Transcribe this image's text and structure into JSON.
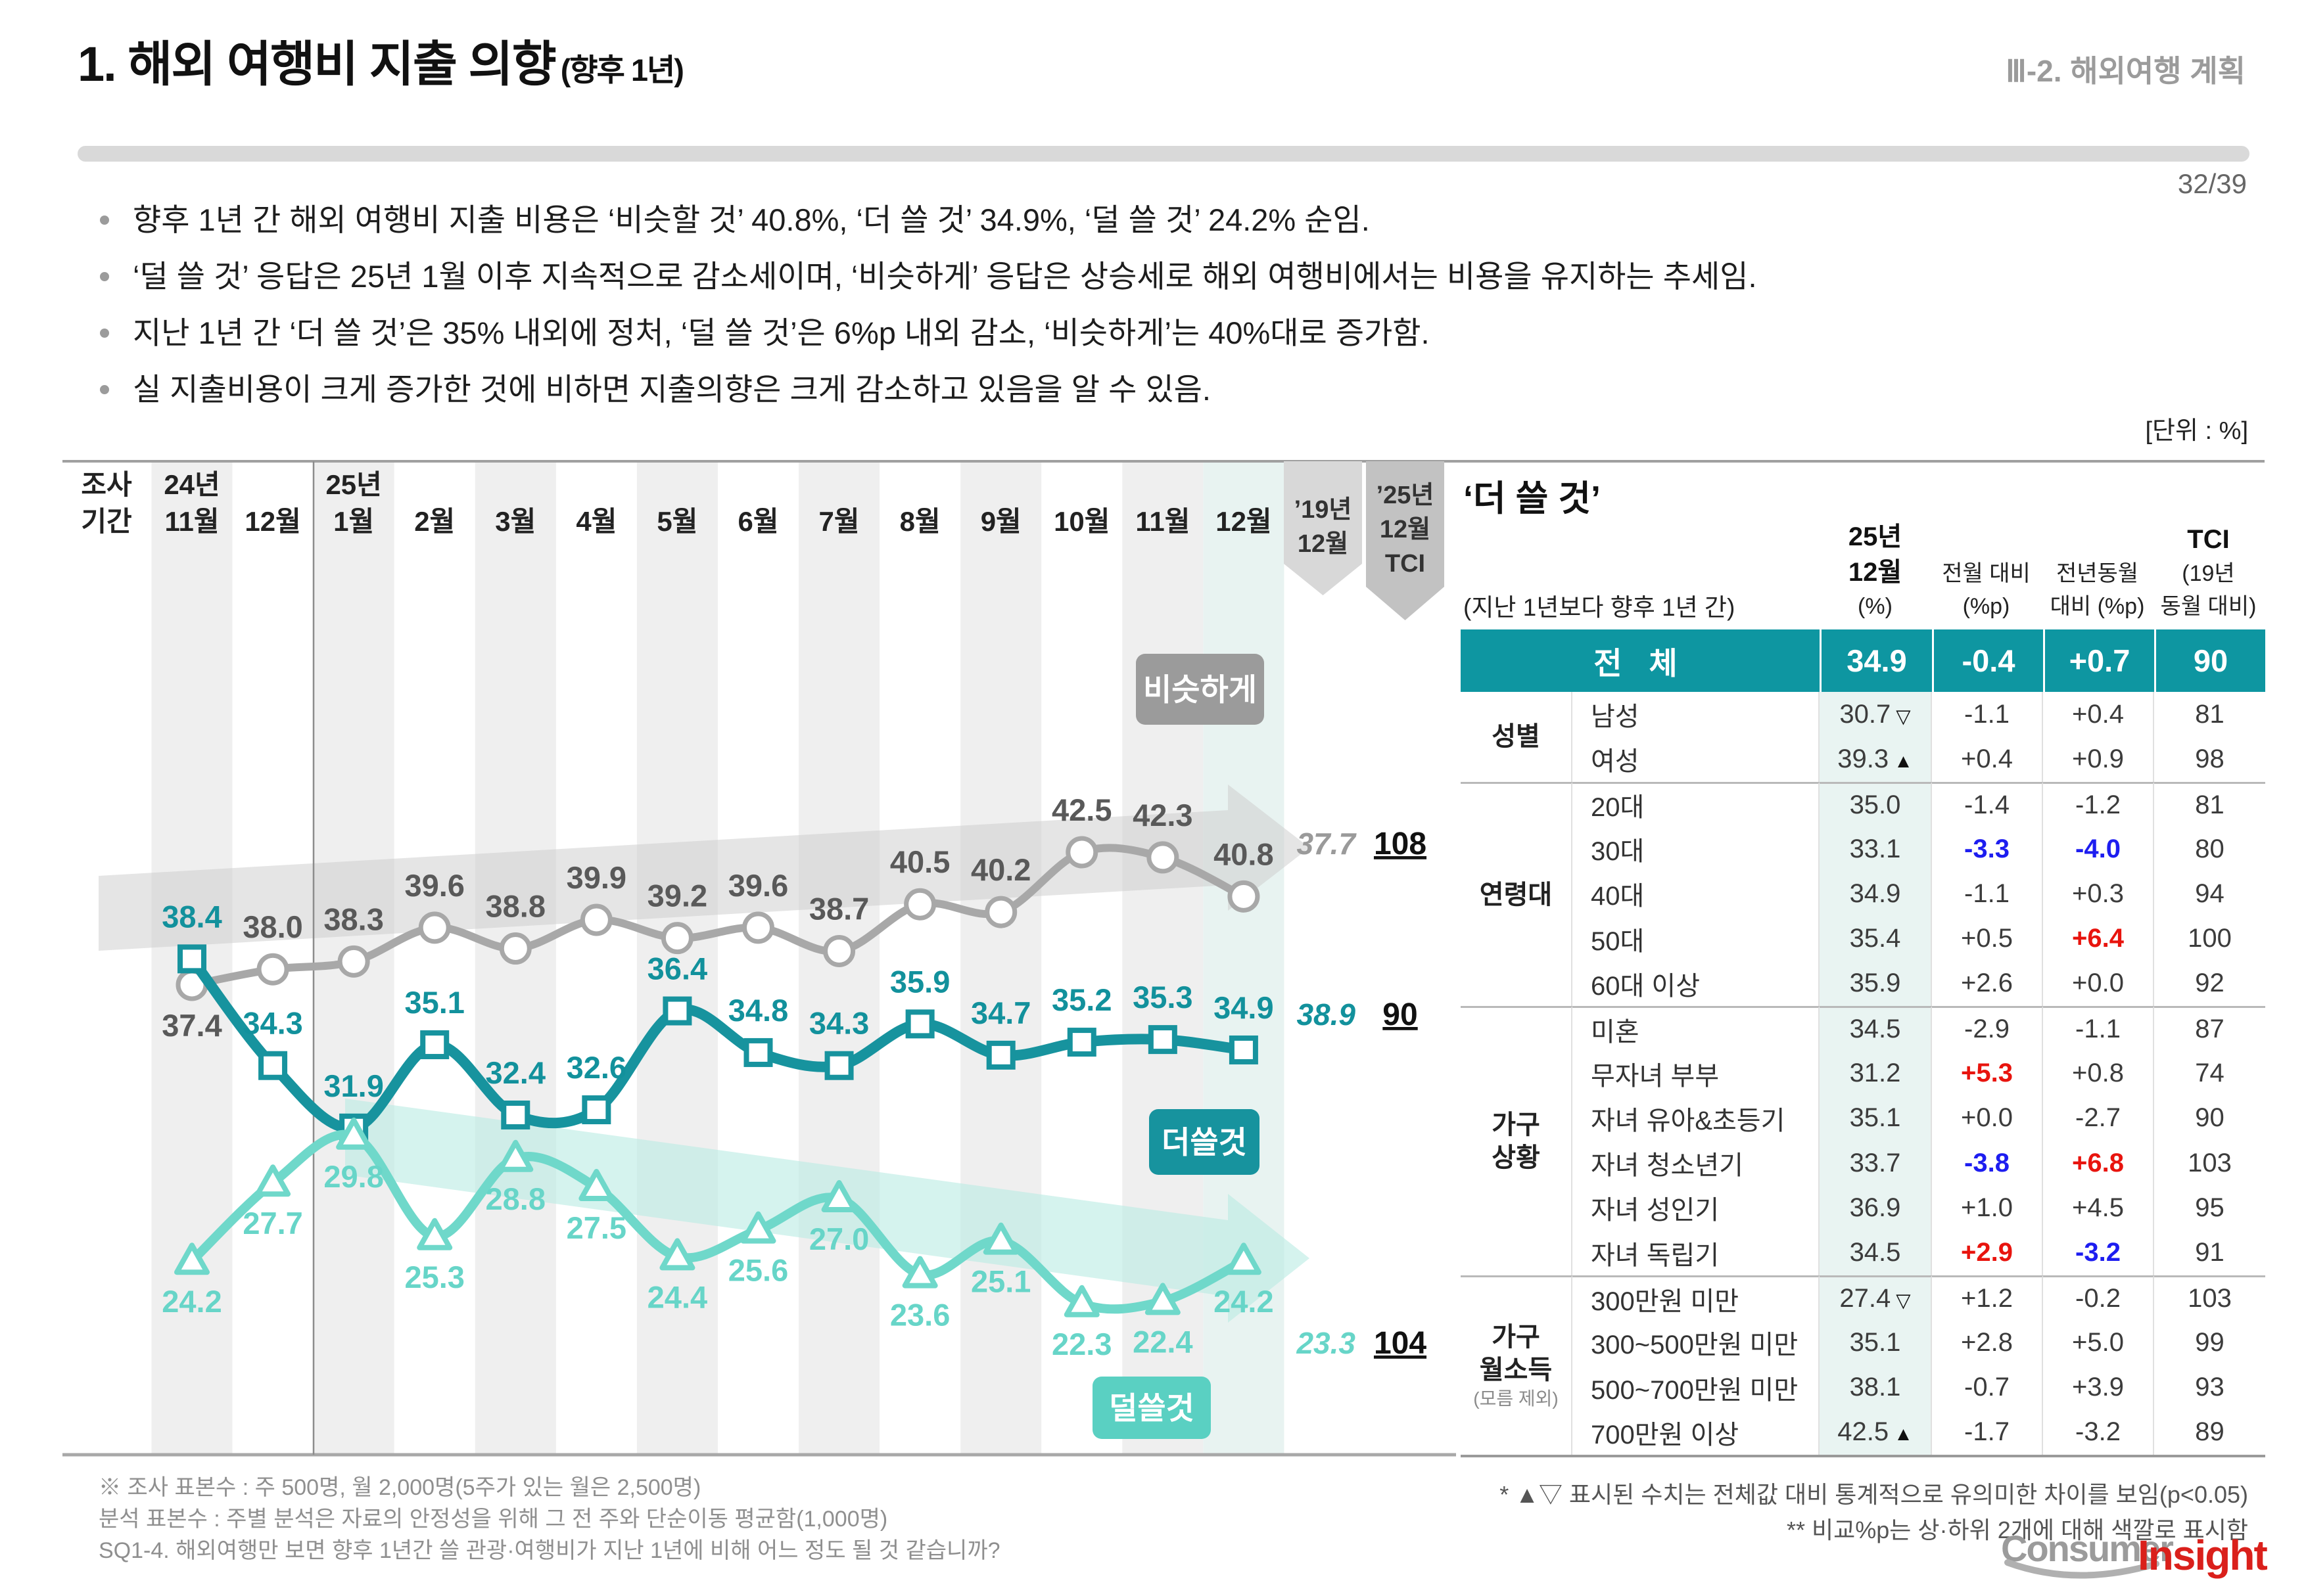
{
  "header": {
    "title": "1. 해외 여행비 지출 의향",
    "title_suffix": "(향후 1년)",
    "section": "Ⅲ-2. 해외여행 계획",
    "page": "32/39"
  },
  "bullets": [
    "향후 1년 간 해외 여행비 지출 비용은 ‘비슷할 것’ 40.8%, ‘더 쓸 것’ 34.9%, ‘덜 쓸 것’ 24.2% 순임.",
    "‘덜 쓸 것’ 응답은 25년 1월 이후 지속적으로 감소세이며, ‘비슷하게’ 응답은 상승세로 해외 여행비에서는 비용을 유지하는 추세임.",
    "지난 1년 간 ‘더 쓸 것’은 35% 내외에 정처, ‘덜 쓸 것’은 6%p 내외 감소, ‘비슷하게’는 40%대로 증가함.",
    "실 지출비용이 크게 증가한 것에 비하면 지출의향은 크게 감소하고 있음을 알 수 있음."
  ],
  "unit_label": "[단위 : %]",
  "chart_data": {
    "type": "line",
    "x_header": [
      "조사",
      "기간"
    ],
    "categories": [
      {
        "year": "24년",
        "month": "11월"
      },
      {
        "month": "12월"
      },
      {
        "year": "25년",
        "month": "1월"
      },
      {
        "month": "2월"
      },
      {
        "month": "3월"
      },
      {
        "month": "4월"
      },
      {
        "month": "5월"
      },
      {
        "month": "6월"
      },
      {
        "month": "7월"
      },
      {
        "month": "8월"
      },
      {
        "month": "9월"
      },
      {
        "month": "10월"
      },
      {
        "month": "11월"
      },
      {
        "month": "12월"
      }
    ],
    "ribbons": [
      {
        "lines": [
          "’19년",
          "12월"
        ],
        "color": "#d8d8d8"
      },
      {
        "lines": [
          "’25년",
          "12월",
          "TCI"
        ],
        "color": "#c2c2c2"
      }
    ],
    "series": [
      {
        "name": "비슷하게",
        "marker": "circle",
        "color": "#a8a8a8",
        "label_color": "#595959",
        "badge_color": "#9b9b9b",
        "values": [
          37.4,
          38.0,
          38.3,
          39.6,
          38.8,
          39.9,
          39.2,
          39.6,
          38.7,
          40.5,
          40.2,
          42.5,
          42.3,
          40.8
        ],
        "ref_19dec": "37.7",
        "tci": "108"
      },
      {
        "name": "더쓸것",
        "marker": "square",
        "color": "#17939e",
        "label_color": "#12919c",
        "badge_color": "#17939e",
        "values": [
          38.4,
          34.3,
          31.9,
          35.1,
          32.4,
          32.6,
          36.4,
          34.8,
          34.3,
          35.9,
          34.7,
          35.2,
          35.3,
          34.9
        ],
        "ref_19dec": "38.9",
        "tci": "90"
      },
      {
        "name": "덜쓸것",
        "marker": "triangle",
        "color": "#6fd8ca",
        "label_color": "#67d5c8",
        "badge_color": "#5ad0c2",
        "values": [
          24.2,
          27.7,
          29.8,
          25.3,
          28.8,
          27.5,
          24.4,
          25.6,
          27.0,
          23.6,
          25.1,
          22.3,
          22.4,
          24.2
        ],
        "ref_19dec": "23.3",
        "tci": "104"
      }
    ]
  },
  "table": {
    "title": "‘더 쓸 것’",
    "subtitle": "(지난 1년보다 향후 1년 간)",
    "col_headers": [
      [
        "25년",
        "12월",
        "(%)"
      ],
      [
        "전월 대비",
        "(%p)"
      ],
      [
        "전년동월",
        "대비 (%p)"
      ],
      [
        "TCI",
        "(19년",
        "동월 대비)"
      ]
    ],
    "total_row": {
      "label": "전  체",
      "v": "34.9",
      "mom": "-0.4",
      "yoy": "+0.7",
      "tci": "90"
    },
    "groups": [
      {
        "label": [
          "성별"
        ],
        "note": "",
        "rows": [
          {
            "cat": "남성",
            "v": "30.7",
            "mark": "▽",
            "mom": "-1.1",
            "yoy": "+0.4",
            "tci": "81",
            "mom_c": "",
            "yoy_c": ""
          },
          {
            "cat": "여성",
            "v": "39.3",
            "mark": "▲",
            "mom": "+0.4",
            "yoy": "+0.9",
            "tci": "98",
            "mom_c": "",
            "yoy_c": ""
          }
        ]
      },
      {
        "label": [
          "연령대"
        ],
        "note": "",
        "rows": [
          {
            "cat": "20대",
            "v": "35.0",
            "mark": "",
            "mom": "-1.4",
            "yoy": "-1.2",
            "tci": "81",
            "mom_c": "",
            "yoy_c": ""
          },
          {
            "cat": "30대",
            "v": "33.1",
            "mark": "",
            "mom": "-3.3",
            "yoy": "-4.0",
            "tci": "80",
            "mom_c": "blue",
            "yoy_c": "blue"
          },
          {
            "cat": "40대",
            "v": "34.9",
            "mark": "",
            "mom": "-1.1",
            "yoy": "+0.3",
            "tci": "94",
            "mom_c": "",
            "yoy_c": ""
          },
          {
            "cat": "50대",
            "v": "35.4",
            "mark": "",
            "mom": "+0.5",
            "yoy": "+6.4",
            "tci": "100",
            "mom_c": "",
            "yoy_c": "red"
          },
          {
            "cat": "60대 이상",
            "v": "35.9",
            "mark": "",
            "mom": "+2.6",
            "yoy": "+0.0",
            "tci": "92",
            "mom_c": "",
            "yoy_c": ""
          }
        ]
      },
      {
        "label": [
          "가구",
          "상황"
        ],
        "note": "",
        "rows": [
          {
            "cat": "미혼",
            "v": "34.5",
            "mark": "",
            "mom": "-2.9",
            "yoy": "-1.1",
            "tci": "87",
            "mom_c": "",
            "yoy_c": ""
          },
          {
            "cat": "무자녀 부부",
            "v": "31.2",
            "mark": "",
            "mom": "+5.3",
            "yoy": "+0.8",
            "tci": "74",
            "mom_c": "red",
            "yoy_c": ""
          },
          {
            "cat": "자녀 유아&초등기",
            "v": "35.1",
            "mark": "",
            "mom": "+0.0",
            "yoy": "-2.7",
            "tci": "90",
            "mom_c": "",
            "yoy_c": ""
          },
          {
            "cat": "자녀 청소년기",
            "v": "33.7",
            "mark": "",
            "mom": "-3.8",
            "yoy": "+6.8",
            "tci": "103",
            "mom_c": "blue",
            "yoy_c": "red"
          },
          {
            "cat": "자녀 성인기",
            "v": "36.9",
            "mark": "",
            "mom": "+1.0",
            "yoy": "+4.5",
            "tci": "95",
            "mom_c": "",
            "yoy_c": ""
          },
          {
            "cat": "자녀 독립기",
            "v": "34.5",
            "mark": "",
            "mom": "+2.9",
            "yoy": "-3.2",
            "tci": "91",
            "mom_c": "red",
            "yoy_c": "blue"
          }
        ]
      },
      {
        "label": [
          "가구",
          "월소득"
        ],
        "note": "(모름 제외)",
        "rows": [
          {
            "cat": "300만원 미만",
            "v": "27.4",
            "mark": "▽",
            "mom": "+1.2",
            "yoy": "-0.2",
            "tci": "103",
            "mom_c": "",
            "yoy_c": ""
          },
          {
            "cat": "300~500만원 미만",
            "v": "35.1",
            "mark": "",
            "mom": "+2.8",
            "yoy": "+5.0",
            "tci": "99",
            "mom_c": "",
            "yoy_c": ""
          },
          {
            "cat": "500~700만원 미만",
            "v": "38.1",
            "mark": "",
            "mom": "-0.7",
            "yoy": "+3.9",
            "tci": "93",
            "mom_c": "",
            "yoy_c": ""
          },
          {
            "cat": "700만원 이상",
            "v": "42.5",
            "mark": "▲",
            "mom": "-1.7",
            "yoy": "-3.2",
            "tci": "89",
            "mom_c": "",
            "yoy_c": ""
          }
        ]
      }
    ]
  },
  "footnotes": {
    "left": [
      "※ 조사 표본수 : 주 500명, 월 2,000명(5주가 있는 월은 2,500명)",
      "분석 표본수 : 주별 분석은 자료의 안정성을 위해 그 전 주와 단순이동 평균함(1,000명)",
      "SQ1-4. 해외여행만 보면 향후 1년간 쓸 관광·여행비가 지난 1년에 비해 어느 정도 될 것 같습니까?"
    ],
    "right": [
      "* ▲▽ 표시된 수치는 전체값 대비 통계적으로 유의미한 차이를 보임(p<0.05)",
      "** 비교%p는 상·하위 2개에 대해 색깔로 표시함"
    ]
  },
  "logo": {
    "part1": "Consumer",
    "part2": "Insight"
  }
}
